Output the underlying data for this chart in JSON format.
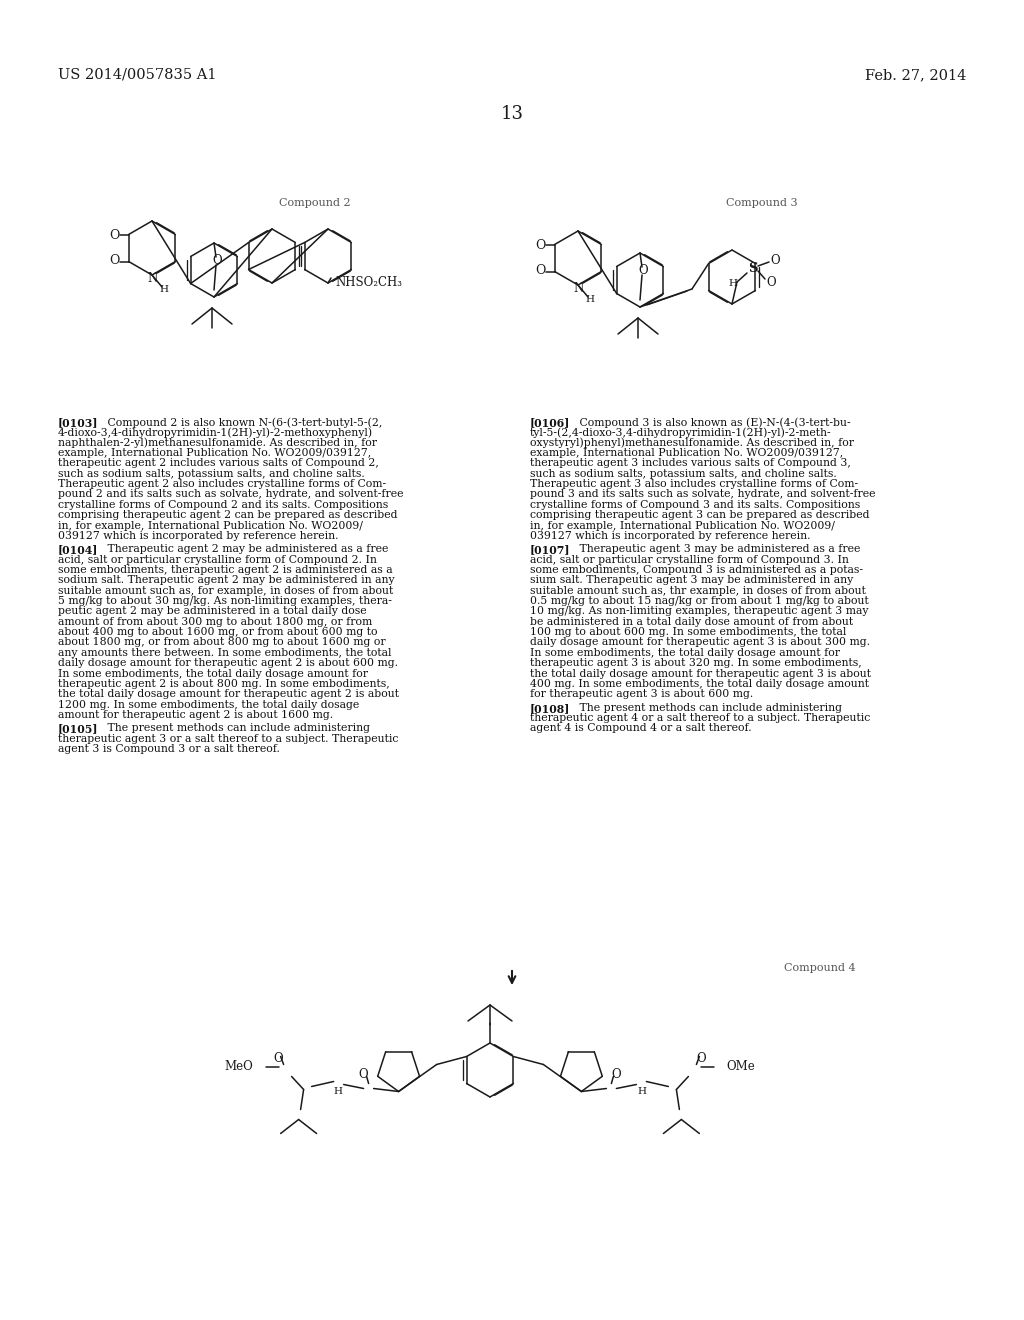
{
  "page_number": "13",
  "header_left": "US 2014/0057835 A1",
  "header_right": "Feb. 27, 2014",
  "compound2_label": "Compound 2",
  "compound3_label": "Compound 3",
  "compound4_label": "Compound 4",
  "background_color": "#ffffff",
  "text_color": "#1a1a1a",
  "para103_bold": "[0103]",
  "para103": "   Compound 2 is also known N-(6-(3-tert-butyl-5-(2,\n4-dioxo-3,4-dihydropyrimidin-1(2H)-yl)-2-methoxyphenyl)\nnaphthalen-2-yl)methanesulfonamide. As described in, for\nexample, International Publication No. WO2009/039127,\ntherapeutic agent 2 includes various salts of Compound 2,\nsuch as sodium salts, potassium salts, and choline salts.\nTherapeutic agent 2 also includes crystalline forms of Com-\npound 2 and its salts such as solvate, hydrate, and solvent-free\ncrystalline forms of Compound 2 and its salts. Compositions\ncomprising therapeutic agent 2 can be prepared as described\nin, for example, International Publication No. WO2009/\n039127 which is incorporated by reference herein.",
  "para104_bold": "[0104]",
  "para104": "   Therapeutic agent 2 may be administered as a free\nacid, salt or particular crystalline form of Compound 2. In\nsome embodiments, therapeutic agent 2 is administered as a\nsodium salt. Therapeutic agent 2 may be administered in any\nsuitable amount such as, for example, in doses of from about\n5 mg/kg to about 30 mg/kg. As non-limiting examples, thera-\npeutic agent 2 may be administered in a total daily dose\namount of from about 300 mg to about 1800 mg, or from\nabout 400 mg to about 1600 mg, or from about 600 mg to\nabout 1800 mg, or from about 800 mg to about 1600 mg or\nany amounts there between. In some embodiments, the total\ndaily dosage amount for therapeutic agent 2 is about 600 mg.\nIn some embodiments, the total daily dosage amount for\ntherapeutic agent 2 is about 800 mg. In some embodiments,\nthe total daily dosage amount for therapeutic agent 2 is about\n1200 mg. In some embodiments, the total daily dosage\namount for therapeutic agent 2 is about 1600 mg.",
  "para105_bold": "[0105]",
  "para105": "   The present methods can include administering\ntherapeutic agent 3 or a salt thereof to a subject. Therapeutic\nagent 3 is Compound 3 or a salt thereof.",
  "para106_bold": "[0106]",
  "para106": "   Compound 3 is also known as (E)-N-(4-(3-tert-bu-\ntyl-5-(2,4-dioxo-3,4-dihydropyrimidin-1(2H)-yl)-2-meth-\noxystyryl)phenyl)methanesulfonamide. As described in, for\nexample, International Publication No. WO2009/039127,\ntherapeutic agent 3 includes various salts of Compound 3,\nsuch as sodium salts, potassium salts, and choline salts.\nTherapeutic agent 3 also includes crystalline forms of Com-\npound 3 and its salts such as solvate, hydrate, and solvent-free\ncrystalline forms of Compound 3 and its salts. Compositions\ncomprising therapeutic agent 3 can be prepared as described\nin, for example, International Publication No. WO2009/\n039127 which is incorporated by reference herein.",
  "para107_bold": "[0107]",
  "para107": "   Therapeutic agent 3 may be administered as a free\nacid, salt or particular crystalline form of Compound 3. In\nsome embodiments, Compound 3 is administered as a potas-\nsium salt. Therapeutic agent 3 may be administered in any\nsuitable amount such as, thr example, in doses of from about\n0.5 mg/kg to about 15 nag/kg or from about 1 mg/kg to about\n10 mg/kg. As non-limiting examples, therapeutic agent 3 may\nbe administered in a total daily dose amount of from about\n100 mg to about 600 mg. In some embodiments, the total\ndaily dosage amount for therapeutic agent 3 is about 300 mg.\nIn some embodiments, the total daily dosage amount for\ntherapeutic agent 3 is about 320 mg. In some embodiments,\nthe total daily dosage amount for therapeutic agent 3 is about\n400 mg. In some embodiments, the total daily dosage amount\nfor therapeutic agent 3 is about 600 mg.",
  "para108_bold": "[0108]",
  "para108": "   The present methods can include administering\ntherapeutic agent 4 or a salt thereof to a subject. Therapeutic\nagent 4 is Compound 4 or a salt thereof."
}
